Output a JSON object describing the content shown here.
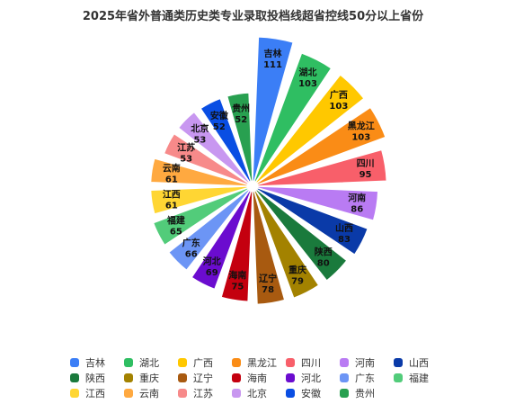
{
  "chart_data": {
    "type": "pie",
    "variant": "nightingale-rose",
    "title": "2025年省外普通类历史类专业录取投档线超省控线50分以上省份",
    "categories": [
      "吉林",
      "湖北",
      "广西",
      "黑龙江",
      "四川",
      "河南",
      "山西",
      "陕西",
      "重庆",
      "辽宁",
      "海南",
      "河北",
      "广东",
      "福建",
      "江西",
      "云南",
      "江苏",
      "北京",
      "安徽",
      "贵州"
    ],
    "values": [
      111,
      103,
      103,
      103,
      95,
      86,
      83,
      80,
      79,
      78,
      75,
      69,
      66,
      65,
      61,
      61,
      53,
      53,
      52,
      52
    ],
    "colors": [
      "#3b7ef6",
      "#2fbe62",
      "#ffc800",
      "#fa8c16",
      "#f85f6a",
      "#b97bf3",
      "#0a3aa8",
      "#1a7a3c",
      "#a38200",
      "#a85a10",
      "#c4000f",
      "#6b0ccf",
      "#6c95f5",
      "#52cc7a",
      "#ffd633",
      "#ffa940",
      "#f78a8a",
      "#c897f0",
      "#0a4ee3",
      "#28a050"
    ],
    "legend": "bottom"
  }
}
